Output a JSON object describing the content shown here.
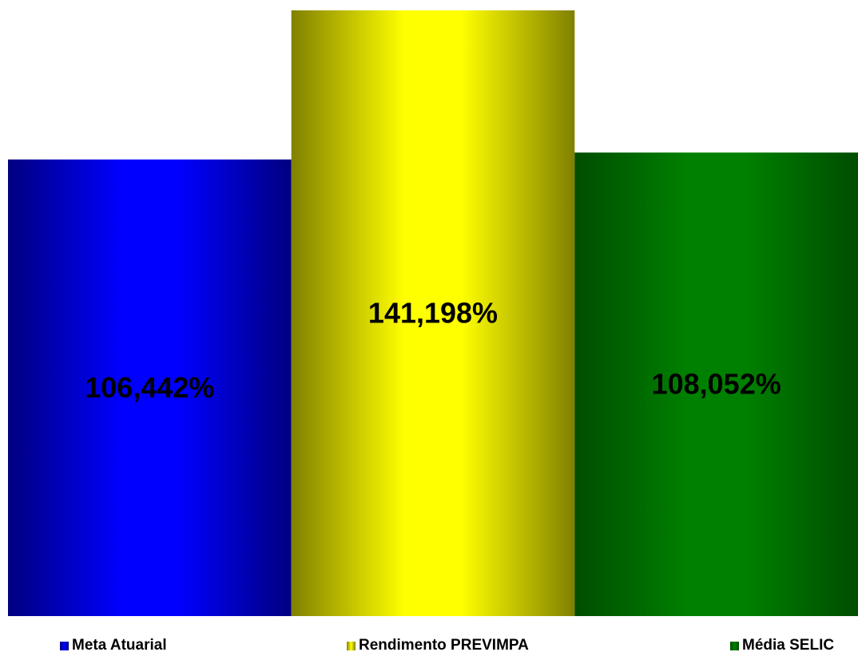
{
  "chart_data": {
    "type": "bar",
    "categories": [
      "Meta Atuarial",
      "Rendimento PREVIMPA",
      "Média SELIC"
    ],
    "values": [
      106.442,
      141.198,
      108.052
    ],
    "data_labels": [
      "106,442%",
      "141,198%",
      "108,052%"
    ],
    "colors": [
      "#0000ff",
      "#ffff00",
      "#008000"
    ],
    "dark_colors": [
      "#000080",
      "#808000",
      "#004d00"
    ],
    "ylim": [
      0,
      150
    ],
    "grid": false,
    "legend": "bottom"
  }
}
